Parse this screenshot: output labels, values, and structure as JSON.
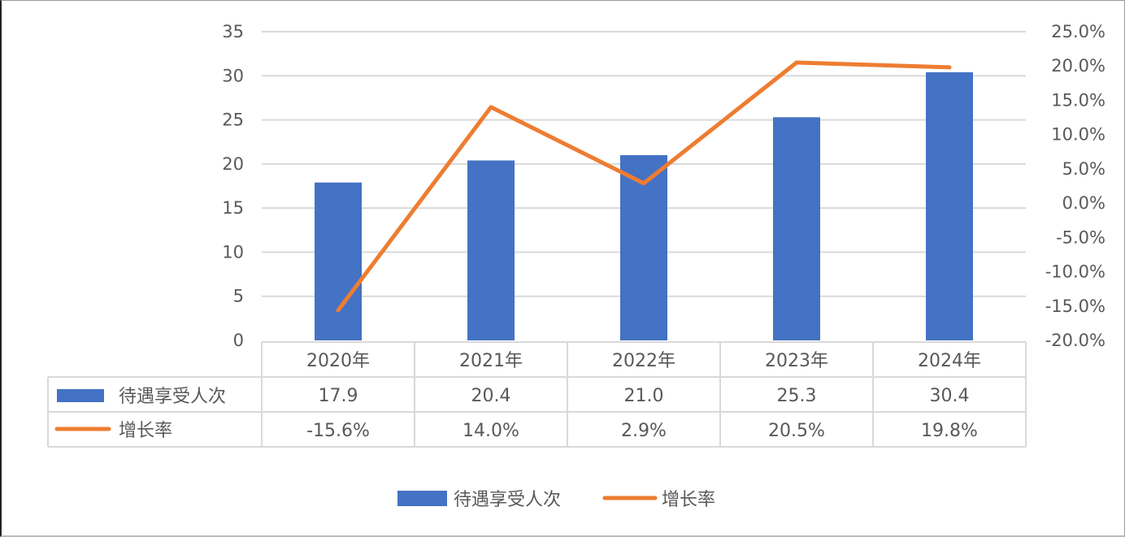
{
  "chart_data": {
    "type": "bar+line",
    "categories": [
      "2020年",
      "2021年",
      "2022年",
      "2023年",
      "2024年"
    ],
    "series": [
      {
        "name": "待遇享受人次",
        "type": "bar",
        "axis": "left",
        "color": "#4472C4",
        "values": [
          17.9,
          20.4,
          21.0,
          25.3,
          30.4
        ],
        "labels": [
          "17.9",
          "20.4",
          "21.0",
          "25.3",
          "30.4"
        ]
      },
      {
        "name": "增长率",
        "type": "line",
        "axis": "right",
        "color": "#ED7D31",
        "values": [
          -15.6,
          14.0,
          2.9,
          20.5,
          19.8
        ],
        "labels": [
          "-15.6%",
          "14.0%",
          "2.9%",
          "20.5%",
          "19.8%"
        ]
      }
    ],
    "y_left": {
      "range": [
        0,
        35
      ],
      "ticks": [
        "0",
        "5",
        "10",
        "15",
        "20",
        "25",
        "30",
        "35"
      ]
    },
    "y_right": {
      "range": [
        -20,
        25
      ],
      "unit": "%",
      "ticks": [
        "-20.0%",
        "-15.0%",
        "-10.0%",
        "-5.0%",
        "0.0%",
        "5.0%",
        "10.0%",
        "15.0%",
        "20.0%",
        "25.0%"
      ]
    },
    "grid": true,
    "data_table": true,
    "legend": "bottom"
  }
}
